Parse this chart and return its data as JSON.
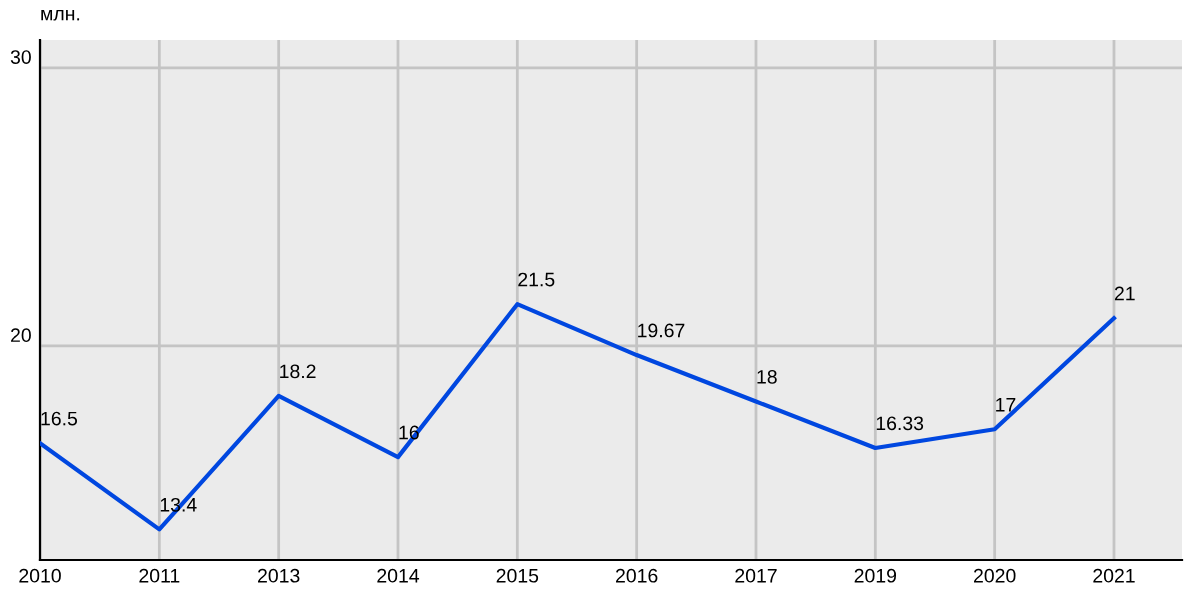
{
  "chart_data": {
    "type": "line",
    "ylabel": "млн.",
    "categories": [
      "2010",
      "2011",
      "2013",
      "2014",
      "2015",
      "2016",
      "2017",
      "2019",
      "2020",
      "2021"
    ],
    "series": [
      {
        "color": "#0047e0",
        "values": [
          16.5,
          13.4,
          18.2,
          16,
          21.5,
          19.67,
          18,
          16.33,
          17,
          21
        ]
      }
    ],
    "ylim": [
      12.3,
      31
    ],
    "yticks": [
      20,
      30
    ],
    "grid": true,
    "data_labels": true,
    "marker": "none",
    "line_style": "solid"
  }
}
